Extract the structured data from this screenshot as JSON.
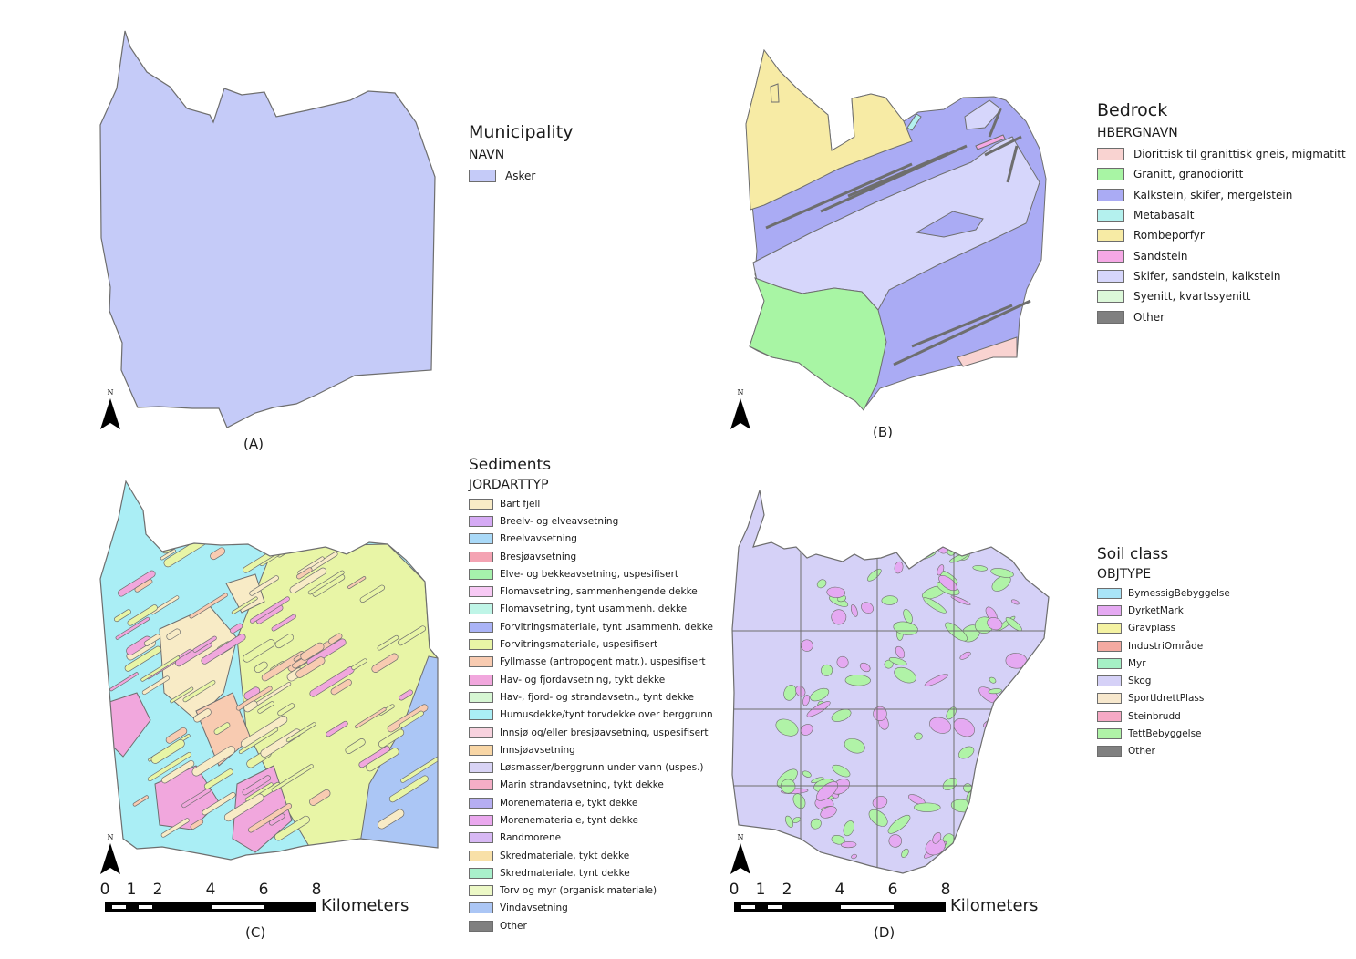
{
  "panels": [
    {
      "caption": "(A)",
      "legend": {
        "title": "Municipality",
        "field": "NAVN",
        "items": [
          {
            "label": "Asker",
            "color": "#c5cbf8"
          }
        ]
      }
    },
    {
      "caption": "(B)",
      "legend": {
        "title": "Bedrock",
        "field": "HBERGNAVN",
        "items": [
          {
            "label": "Diorittisk til granittisk gneis, migmatitt",
            "color": "#f9d3d1"
          },
          {
            "label": "Granitt, granodioritt",
            "color": "#a8f5a4"
          },
          {
            "label": "Kalkstein, skifer, mergelstein",
            "color": "#aaabf4"
          },
          {
            "label": "Metabasalt",
            "color": "#b4f1ee"
          },
          {
            "label": "Rombeporfyr",
            "color": "#f7eba5"
          },
          {
            "label": "Sandstein",
            "color": "#f5a8e5"
          },
          {
            "label": "Skifer, sandstein, kalkstein",
            "color": "#d6d6fb"
          },
          {
            "label": "Syenitt, kvartssyenitt",
            "color": "#dcf8d9"
          },
          {
            "label": "Other",
            "color": "#808080"
          }
        ]
      }
    },
    {
      "caption": "(C)",
      "legend": {
        "title": "Sediments",
        "field": "JORDARTTYP",
        "items": [
          {
            "label": "Bart fjell",
            "color": "#f8ebc6"
          },
          {
            "label": "Breelv- og elveavsetning",
            "color": "#d5aaf4"
          },
          {
            "label": "Breelvavsetning",
            "color": "#a9d9f8"
          },
          {
            "label": "Bresjøavsetning",
            "color": "#f4a3b3"
          },
          {
            "label": "Elve- og bekkeavsetning, uspesifisert",
            "color": "#a6f1ac"
          },
          {
            "label": "Flomavsetning, sammenhengende dekke",
            "color": "#f7c9f4"
          },
          {
            "label": "Flomavsetning, tynt usammenh. dekke",
            "color": "#bff5e7"
          },
          {
            "label": "Forvitringsmateriale, tynt usammenh. dekke",
            "color": "#aab3f6"
          },
          {
            "label": "Forvitringsmateriale, uspesifisert",
            "color": "#e8f5a6"
          },
          {
            "label": "Fyllmasse (antropogent matr.), uspesifisert",
            "color": "#f8cbb1"
          },
          {
            "label": "Hav- og fjordavsetning, tykt dekke",
            "color": "#f1a7dd"
          },
          {
            "label": "Hav-, fjord- og strandavsetn., tynt dekke",
            "color": "#d6f6d3"
          },
          {
            "label": "Humusdekke/tynt torvdekke over berggrunn",
            "color": "#aaeef5"
          },
          {
            "label": "Innsjø og/eller bresjøavsetning, uspesifisert",
            "color": "#f7d2de"
          },
          {
            "label": "Innsjøavsetning",
            "color": "#f8d6a6"
          },
          {
            "label": "Løsmasser/berggrunn under vann (uspes.)",
            "color": "#d8d3f5"
          },
          {
            "label": "Marin strandavsetning, tykt dekke",
            "color": "#f4aec6"
          },
          {
            "label": "Morenemateriale, tykt dekke",
            "color": "#b6aef2"
          },
          {
            "label": "Morenemateriale, tynt dekke",
            "color": "#eaa8ee"
          },
          {
            "label": "Randmorene",
            "color": "#d7b8f4"
          },
          {
            "label": "Skredmateriale, tykt dekke",
            "color": "#f8e0a8"
          },
          {
            "label": "Skredmateriale, tynt dekke",
            "color": "#a9f0cb"
          },
          {
            "label": "Torv og myr (organisk materiale)",
            "color": "#ecf8c6"
          },
          {
            "label": "Vindavsetning",
            "color": "#abc6f5"
          },
          {
            "label": "Other",
            "color": "#808080"
          }
        ]
      }
    },
    {
      "caption": "(D)",
      "legend": {
        "title": "Soil class",
        "field": "OBJTYPE",
        "items": [
          {
            "label": "BymessigBebyggelse",
            "color": "#a9e4f7"
          },
          {
            "label": "DyrketMark",
            "color": "#e5a9f2"
          },
          {
            "label": "Gravplass",
            "color": "#f4f2a2"
          },
          {
            "label": "IndustriOmråde",
            "color": "#f4aaa1"
          },
          {
            "label": "Myr",
            "color": "#a5f0c5"
          },
          {
            "label": "Skog",
            "color": "#d5d1f7"
          },
          {
            "label": "SportIdrettPlass",
            "color": "#f7e8cd"
          },
          {
            "label": "Steinbrudd",
            "color": "#f6a9c5"
          },
          {
            "label": "TettBebyggelse",
            "color": "#b0f3a7"
          },
          {
            "label": "Other",
            "color": "#808080"
          }
        ]
      }
    }
  ],
  "north_label": "N",
  "scalebar": {
    "ticks": [
      "0",
      "1",
      "2",
      "4",
      "6",
      "8"
    ],
    "tick_km": [
      0,
      1,
      2,
      4,
      6,
      8
    ],
    "unit": "Kilometers"
  },
  "map_colors": {
    "outline": "#6e6e6e",
    "municipality": "#c5cbf8",
    "skifer": "#d6d6fb",
    "kalkstein": "#aaabf4",
    "rombeporfyr": "#f7eba5",
    "granitt": "#a8f5a4",
    "gneis": "#f9d3d1",
    "sandstein": "#f5a8e5",
    "metabasalt": "#b4f1ee",
    "forvitring": "#e8f5a6",
    "humus": "#aaeef5",
    "hav": "#f1a7dd",
    "bartfjell": "#f8ebc6",
    "fyllmasse": "#f8cbb1",
    "vindavsetning": "#abc6f5",
    "skog": "#d5d1f7",
    "tett": "#b0f3a7",
    "dyrket": "#e5a9f2"
  }
}
